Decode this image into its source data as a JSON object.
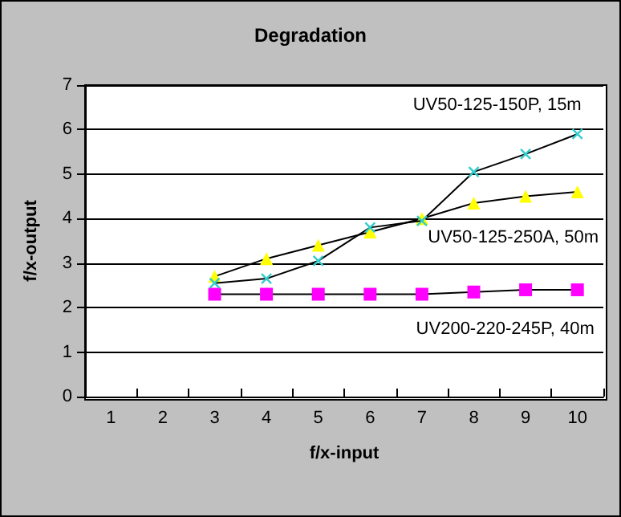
{
  "chart_data": {
    "type": "line",
    "title": "Degradation",
    "xlabel": "f/x-input",
    "ylabel": "f/x-output",
    "categories": [
      "1",
      "2",
      "3",
      "4",
      "5",
      "6",
      "7",
      "8",
      "9",
      "10"
    ],
    "series": [
      {
        "name": "UV50-125-150P, 15m",
        "color": "#33cccc",
        "marker": "cross",
        "values": [
          null,
          null,
          2.55,
          2.65,
          3.05,
          3.8,
          3.95,
          5.05,
          5.45,
          5.9
        ]
      },
      {
        "name": "UV50-125-250A, 50m",
        "color": "#ffff00",
        "marker": "triangle",
        "values": [
          null,
          null,
          2.7,
          3.1,
          3.4,
          3.7,
          4.0,
          4.35,
          4.5,
          4.6
        ]
      },
      {
        "name": "UV200-220-245P, 40m",
        "color": "#ff00ff",
        "marker": "square",
        "values": [
          null,
          null,
          2.3,
          2.3,
          2.3,
          2.3,
          2.3,
          2.35,
          2.4,
          2.4
        ]
      }
    ],
    "ylim": [
      0,
      7
    ],
    "yticks": [
      0,
      1,
      2,
      3,
      4,
      5,
      6,
      7
    ],
    "grid": "y",
    "legend": false,
    "line_style": "solid"
  }
}
